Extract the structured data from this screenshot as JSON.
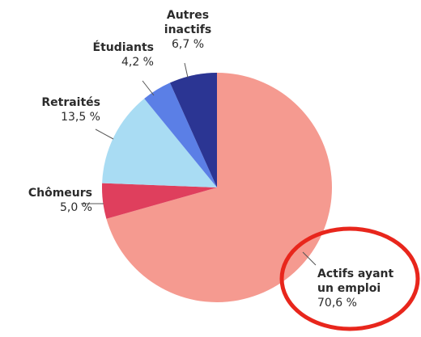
{
  "chart_data": {
    "type": "pie",
    "categories": [
      "Actifs ayant un emploi",
      "Chômeurs",
      "Retraités",
      "Étudiants",
      "Autres inactifs"
    ],
    "values": [
      70.6,
      5.0,
      13.5,
      4.2,
      6.7
    ],
    "value_labels": [
      "70,6 %",
      "5,0 %",
      "13,5 %",
      "4,2 %",
      "6,7 %"
    ],
    "colors": [
      "#f59a90",
      "#df3f5d",
      "#a9dcf3",
      "#5b7fe6",
      "#2b3593"
    ]
  }
}
